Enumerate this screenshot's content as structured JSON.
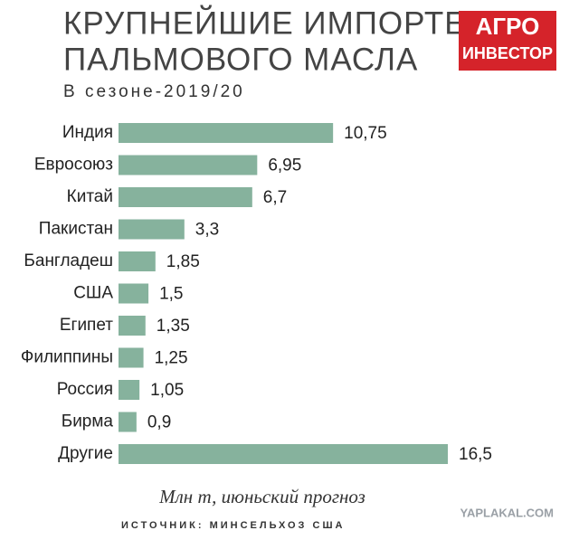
{
  "chart_data": {
    "type": "bar",
    "orientation": "horizontal",
    "title": [
      "КРУПНЕЙШИЕ ИМПОРТЕРЫ",
      "ПАЛЬМОВОГО МАСЛА"
    ],
    "subtitle": "В сезоне-2019/20",
    "logo": [
      "АГРО",
      "ИНВЕСТОР"
    ],
    "categories": [
      "Индия",
      "Евросоюз",
      "Китай",
      "Пакистан",
      "Бангладеш",
      "США",
      "Египет",
      "Филиппины",
      "Россия",
      "Бирма",
      "Другие"
    ],
    "values": [
      10.75,
      6.95,
      6.7,
      3.3,
      1.85,
      1.5,
      1.35,
      1.25,
      1.05,
      0.9,
      16.5
    ],
    "value_labels": [
      "10,75",
      "6,95",
      "6,7",
      "3,3",
      "1,85",
      "1,5",
      "1,35",
      "1,25",
      "1,05",
      "0,9",
      "16,5"
    ],
    "color": "#86b29d",
    "unit_note": "Млн т, июньский прогноз",
    "source": "ИСТОЧНИК: МИНСЕЛЬХОЗ США",
    "watermark": "YAPLAKAL.COM"
  }
}
